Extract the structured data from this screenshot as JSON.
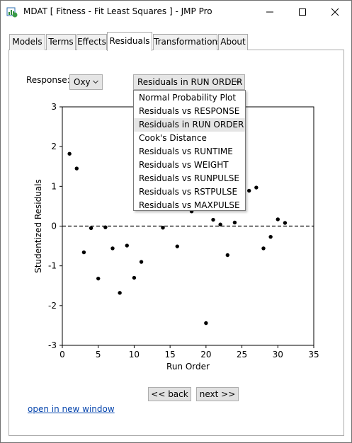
{
  "window": {
    "title": "MDAT [ Fitness - Fit Least Squares ] - JMP Pro",
    "icon": "jmp-app-icon"
  },
  "tabs": [
    {
      "label": "Models"
    },
    {
      "label": "Terms"
    },
    {
      "label": "Effects"
    },
    {
      "label": "Residuals",
      "active": true
    },
    {
      "label": "Transformations"
    },
    {
      "label": "About"
    }
  ],
  "response": {
    "label": "Response:",
    "value": "Oxy"
  },
  "plot_selector": {
    "value": "Residuals in RUN ORDER",
    "options": [
      "Normal Probability Plot",
      "Residuals vs RESPONSE",
      "Residuals in RUN ORDER",
      "Cook's Distance",
      "Residuals vs RUNTIME",
      "Residuals vs WEIGHT",
      "Residuals vs RUNPULSE",
      "Residuals vs RSTPULSE",
      "Residuals vs MAXPULSE"
    ],
    "highlighted_index": 2
  },
  "chart_data": {
    "type": "scatter",
    "xlabel": "Run Order",
    "ylabel": "Studentized Residuals",
    "xlim": [
      0,
      35
    ],
    "ylim": [
      -3,
      3
    ],
    "xticks": [
      0,
      5,
      10,
      15,
      20,
      25,
      30,
      35
    ],
    "yticks": [
      -3,
      -2,
      -1,
      0,
      1,
      2,
      3
    ],
    "reference_line": {
      "y": 0,
      "style": "dashed"
    },
    "point_color": "#000000",
    "points": [
      {
        "x": 1,
        "y": 1.82
      },
      {
        "x": 2,
        "y": 1.45
      },
      {
        "x": 3,
        "y": -0.66
      },
      {
        "x": 4,
        "y": -0.05
      },
      {
        "x": 5,
        "y": -1.32
      },
      {
        "x": 6,
        "y": -0.03
      },
      {
        "x": 7,
        "y": -0.56
      },
      {
        "x": 8,
        "y": -1.68
      },
      {
        "x": 9,
        "y": -0.49
      },
      {
        "x": 10,
        "y": -1.3
      },
      {
        "x": 11,
        "y": -0.9
      },
      {
        "x": 14,
        "y": -0.04
      },
      {
        "x": 16,
        "y": -0.51
      },
      {
        "x": 18,
        "y": 0.37
      },
      {
        "x": 20,
        "y": -2.44
      },
      {
        "x": 21,
        "y": 0.16
      },
      {
        "x": 22,
        "y": 0.04
      },
      {
        "x": 23,
        "y": -0.73
      },
      {
        "x": 24,
        "y": 0.09
      },
      {
        "x": 25,
        "y": 0.79
      },
      {
        "x": 26,
        "y": 0.89
      },
      {
        "x": 27,
        "y": 0.97
      },
      {
        "x": 28,
        "y": -0.56
      },
      {
        "x": 29,
        "y": -0.27
      },
      {
        "x": 30,
        "y": 0.17
      },
      {
        "x": 31,
        "y": 0.08
      }
    ]
  },
  "nav": {
    "back_label": "<< back",
    "next_label": "next >>"
  },
  "link": {
    "label": "open in new window",
    "color": "#0645ad"
  }
}
